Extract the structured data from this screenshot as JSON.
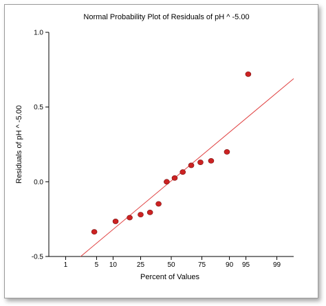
{
  "chart_data": {
    "type": "scatter",
    "title": "Normal Probability Plot of Residuals of pH ^ -5.00",
    "xlabel": "Percent of Values",
    "ylabel": "Residuals of pH ^ -5.00",
    "x_scale": "normal-probability",
    "x_ticks": [
      1,
      5,
      10,
      25,
      50,
      75,
      90,
      95,
      99
    ],
    "y_ticks": [
      -0.5,
      0.0,
      0.5,
      1.0
    ],
    "y_tick_labels": [
      "-0.5",
      "0.0",
      "0.5",
      "1.0"
    ],
    "ylim": [
      -0.5,
      1.0
    ],
    "xlim": [
      0.35,
      99.65
    ],
    "grid": false,
    "legend": "none",
    "point_color": "#cc2222",
    "line_color": "#e04040",
    "points": [
      {
        "x": 4.5,
        "y": -0.335
      },
      {
        "x": 11.0,
        "y": -0.265
      },
      {
        "x": 18.0,
        "y": -0.24
      },
      {
        "x": 25.0,
        "y": -0.22
      },
      {
        "x": 32.0,
        "y": -0.205
      },
      {
        "x": 39.0,
        "y": -0.148
      },
      {
        "x": 46.0,
        "y": 0.0
      },
      {
        "x": 53.0,
        "y": 0.025
      },
      {
        "x": 60.0,
        "y": 0.065
      },
      {
        "x": 67.0,
        "y": 0.11
      },
      {
        "x": 74.0,
        "y": 0.13
      },
      {
        "x": 81.0,
        "y": 0.14
      },
      {
        "x": 89.0,
        "y": 0.2
      },
      {
        "x": 95.5,
        "y": 0.72
      }
    ],
    "fit_line": {
      "start": {
        "x": 2.3,
        "y": -0.5
      },
      "end": {
        "x": 99.65,
        "y": 0.69
      }
    }
  }
}
